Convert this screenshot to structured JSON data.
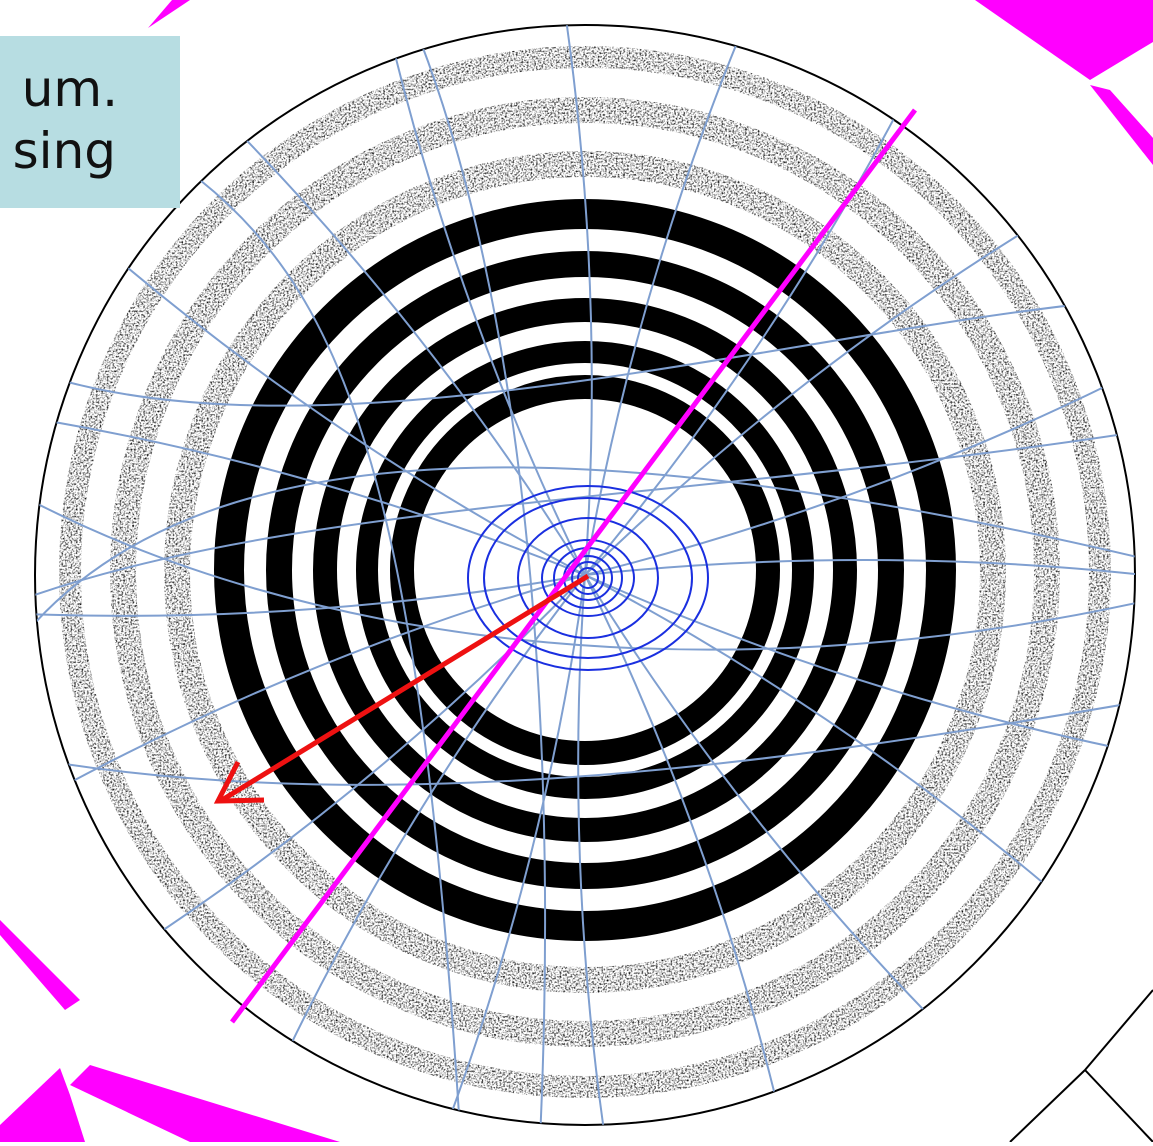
{
  "caption": {
    "line1": "um.",
    "line2": "sing"
  },
  "colors": {
    "background": "#ffffff",
    "caption_bg": "#b7dde2",
    "rings": "#000000",
    "grid_lines": "#7f9fd0",
    "inner_contours": "#1a2fe0",
    "track_line": "#ff00ff",
    "arrow": "#ee1111",
    "corner_wedges": "#ff00ff"
  },
  "icons": {
    "arrow": "missing-momentum-arrow-icon",
    "track": "straight-track-line"
  }
}
